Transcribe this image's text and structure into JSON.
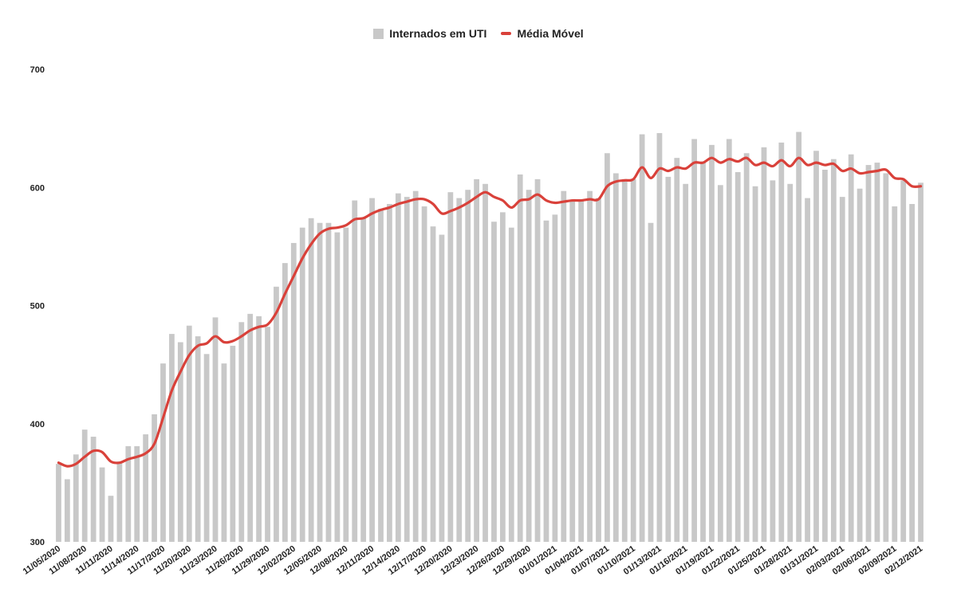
{
  "chart_data": {
    "type": "bar",
    "legend_position": "top-center",
    "grid": false,
    "ylim": [
      300,
      700
    ],
    "y_ticks": [
      "300",
      "400",
      "500",
      "600",
      "700"
    ],
    "colors": {
      "bars": "#c8c8c8",
      "line": "#d9413a"
    },
    "categories": [
      "11/05/2020",
      "11/06/2020",
      "11/07/2020",
      "11/08/2020",
      "11/09/2020",
      "11/10/2020",
      "11/11/2020",
      "11/12/2020",
      "11/13/2020",
      "11/14/2020",
      "11/15/2020",
      "11/16/2020",
      "11/17/2020",
      "11/18/2020",
      "11/19/2020",
      "11/20/2020",
      "11/21/2020",
      "11/22/2020",
      "11/23/2020",
      "11/24/2020",
      "11/25/2020",
      "11/26/2020",
      "11/27/2020",
      "11/28/2020",
      "11/29/2020",
      "11/30/2020",
      "12/01/2020",
      "12/02/2020",
      "12/03/2020",
      "12/04/2020",
      "12/05/2020",
      "12/06/2020",
      "12/07/2020",
      "12/08/2020",
      "12/09/2020",
      "12/10/2020",
      "12/11/2020",
      "12/12/2020",
      "12/13/2020",
      "12/14/2020",
      "12/15/2020",
      "12/16/2020",
      "12/17/2020",
      "12/18/2020",
      "12/19/2020",
      "12/20/2020",
      "12/21/2020",
      "12/22/2020",
      "12/23/2020",
      "12/24/2020",
      "12/25/2020",
      "12/26/2020",
      "12/27/2020",
      "12/28/2020",
      "12/29/2020",
      "12/30/2020",
      "12/31/2020",
      "01/01/2021",
      "01/02/2021",
      "01/03/2021",
      "01/04/2021",
      "01/05/2021",
      "01/06/2021",
      "01/07/2021",
      "01/08/2021",
      "01/09/2021",
      "01/10/2021",
      "01/11/2021",
      "01/12/2021",
      "01/13/2021",
      "01/14/2021",
      "01/15/2021",
      "01/16/2021",
      "01/17/2021",
      "01/18/2021",
      "01/19/2021",
      "01/20/2021",
      "01/21/2021",
      "01/22/2021",
      "01/23/2021",
      "01/24/2021",
      "01/25/2021",
      "01/26/2021",
      "01/27/2021",
      "01/28/2021",
      "01/29/2021",
      "01/30/2021",
      "01/31/2021",
      "02/01/2021",
      "02/02/2021",
      "02/03/2021",
      "02/04/2021",
      "02/05/2021",
      "02/06/2021",
      "02/07/2021",
      "02/08/2021",
      "02/09/2021",
      "02/10/2021",
      "02/11/2021",
      "02/12/2021"
    ],
    "x_tick_labels": [
      "11/05/2020",
      "11/08/2020",
      "11/11/2020",
      "11/14/2020",
      "11/17/2020",
      "11/20/2020",
      "11/23/2020",
      "11/26/2020",
      "11/29/2020",
      "12/02/2020",
      "12/05/2020",
      "12/08/2020",
      "12/11/2020",
      "12/14/2020",
      "12/17/2020",
      "12/20/2020",
      "12/23/2020",
      "12/26/2020",
      "12/29/2020",
      "01/01/2021",
      "01/04/2021",
      "01/07/2021",
      "01/10/2021",
      "01/13/2021",
      "01/16/2021",
      "01/19/2021",
      "01/22/2021",
      "01/25/2021",
      "01/28/2021",
      "01/31/2021",
      "02/03/2021",
      "02/06/2021",
      "02/09/2021",
      "02/12/2021"
    ],
    "series": [
      {
        "name": "Internados em UTI",
        "kind": "bar",
        "values": [
          366,
          353,
          374,
          395,
          389,
          363,
          339,
          368,
          381,
          381,
          391,
          408,
          451,
          476,
          469,
          483,
          474,
          459,
          490,
          451,
          466,
          486,
          493,
          491,
          482,
          516,
          536,
          553,
          566,
          574,
          570,
          570,
          562,
          566,
          589,
          574,
          591,
          582,
          586,
          595,
          592,
          597,
          584,
          567,
          560,
          596,
          591,
          598,
          607,
          603,
          571,
          579,
          566,
          611,
          598,
          607,
          572,
          577,
          597,
          589,
          590,
          597,
          591,
          629,
          612,
          607,
          607,
          645,
          570,
          646,
          609,
          625,
          603,
          641,
          622,
          636,
          602,
          641,
          613,
          629,
          601,
          634,
          606,
          638,
          603,
          647,
          591,
          631,
          615,
          624,
          592,
          628,
          599,
          619,
          621,
          612,
          584,
          606,
          586,
          604
        ]
      },
      {
        "name": "Média Móvel",
        "kind": "line",
        "values": [
          367,
          364,
          366,
          372,
          377,
          376,
          368,
          367,
          370,
          372,
          375,
          383,
          405,
          428,
          444,
          458,
          466,
          468,
          474,
          469,
          470,
          474,
          479,
          482,
          484,
          494,
          510,
          525,
          540,
          552,
          561,
          565,
          566,
          568,
          573,
          574,
          578,
          581,
          583,
          586,
          588,
          590,
          590,
          586,
          578,
          580,
          583,
          587,
          592,
          596,
          592,
          589,
          583,
          589,
          590,
          594,
          589,
          587,
          588,
          589,
          589,
          590,
          590,
          601,
          605,
          606,
          607,
          617,
          608,
          616,
          614,
          617,
          616,
          621,
          621,
          625,
          621,
          624,
          622,
          625,
          619,
          621,
          618,
          623,
          618,
          625,
          619,
          621,
          619,
          620,
          614,
          616,
          612,
          613,
          614,
          615,
          608,
          607,
          601,
          601
        ]
      }
    ]
  }
}
